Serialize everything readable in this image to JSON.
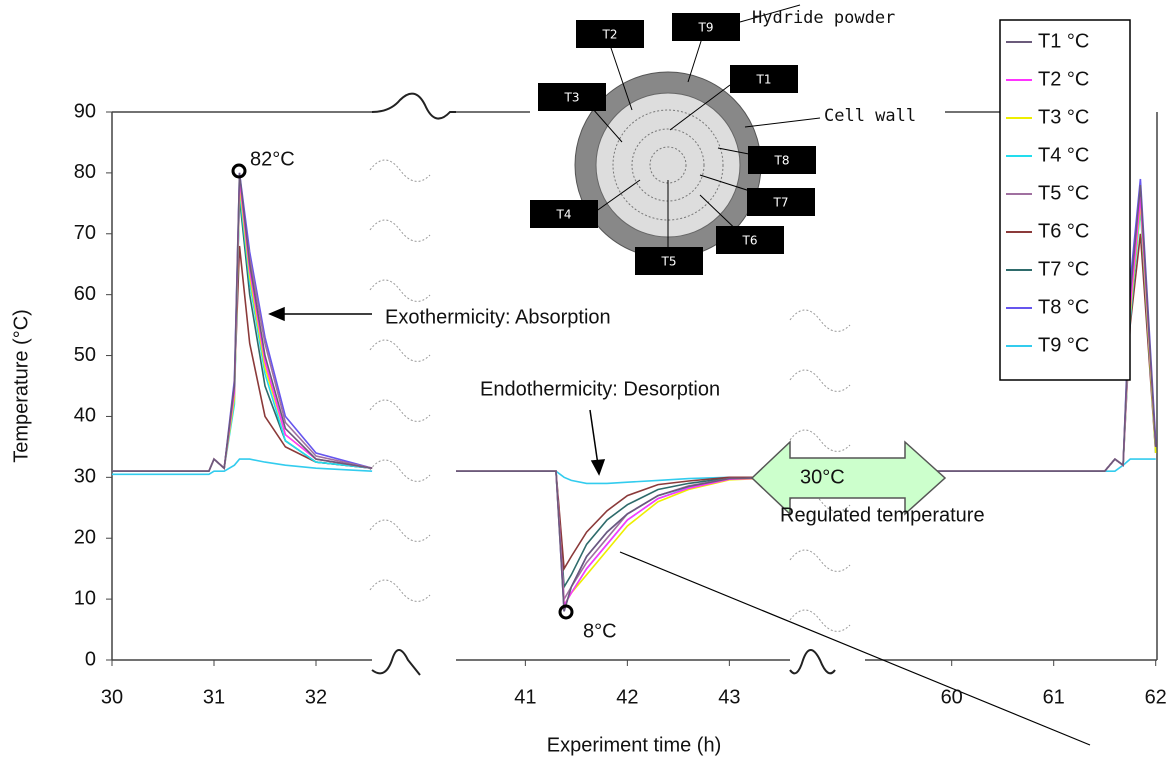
{
  "chart_data": {
    "type": "line",
    "y_label": "Temperature (°C)",
    "x_label": "Experiment time (h)",
    "ylim": [
      0,
      90
    ],
    "yticks": [
      0,
      10,
      20,
      30,
      40,
      50,
      60,
      70,
      80,
      90
    ],
    "xlim": [
      [
        30,
        32.55
      ],
      [
        40.32,
        43.6
      ],
      [
        59.15,
        62
      ]
    ],
    "xticks": [
      [
        30,
        31,
        32
      ],
      [
        41,
        42,
        43
      ],
      [
        60,
        61,
        62
      ]
    ],
    "x": [
      30,
      30.95,
      31.0,
      31.1,
      31.2,
      31.25,
      31.35,
      31.5,
      31.7,
      32.0,
      32.55,
      null,
      40.32,
      41.3,
      41.38,
      41.45,
      41.6,
      41.8,
      42.0,
      42.3,
      42.6,
      43.0,
      43.6,
      null,
      59.15,
      61.5,
      61.6,
      61.68,
      61.75,
      61.85,
      62.0
    ],
    "series": [
      {
        "name": "T9 °C",
        "color": "#33ccee",
        "values": [
          30.5,
          30.5,
          31,
          31,
          32,
          33,
          33,
          32.5,
          32,
          31.5,
          31,
          null,
          31,
          31,
          30,
          29.5,
          29,
          29,
          29.2,
          29.5,
          29.8,
          30,
          30,
          null,
          31,
          31,
          31,
          32,
          33,
          33,
          33
        ]
      },
      {
        "name": "T8 °C",
        "color": "#6655ee",
        "values": [
          31,
          31,
          33,
          31.5,
          46,
          80,
          67,
          53,
          40,
          34,
          31.5,
          null,
          31,
          31,
          8,
          12,
          17,
          21,
          24,
          27,
          28.5,
          29.8,
          30,
          null,
          31,
          31,
          33,
          32,
          62,
          79,
          36
        ]
      },
      {
        "name": "T7 °C",
        "color": "#2e6b6b",
        "values": [
          31,
          31,
          33,
          31.5,
          44,
          76,
          60,
          45,
          36,
          32.5,
          31.5,
          null,
          31,
          31,
          12,
          14,
          19,
          23,
          25.5,
          28,
          29,
          29.9,
          30,
          null,
          31,
          31,
          33,
          32,
          58,
          75,
          35
        ]
      },
      {
        "name": "T6 °C",
        "color": "#8b3a3a",
        "values": [
          31,
          31,
          33,
          31.5,
          45,
          68,
          52,
          40,
          35,
          32.5,
          31.5,
          null,
          31,
          31,
          15,
          17,
          21,
          24.5,
          27,
          28.8,
          29.4,
          30,
          30,
          null,
          31,
          31,
          33,
          32,
          55,
          70,
          34
        ]
      },
      {
        "name": "T5 °C",
        "color": "#a070a0",
        "values": [
          31,
          31,
          33,
          31.5,
          44,
          78,
          66,
          52,
          39,
          33.5,
          31.5,
          null,
          31,
          31,
          10,
          12,
          16,
          20,
          24,
          27,
          28.6,
          29.8,
          30,
          null,
          31,
          31,
          33,
          32,
          59,
          77,
          35
        ]
      },
      {
        "name": "T4 °C",
        "color": "#22ddee",
        "values": [
          31,
          31,
          33,
          31.5,
          42,
          77,
          62,
          47,
          36,
          32.5,
          31.5,
          null,
          31,
          31,
          9,
          11,
          15,
          19,
          23,
          26.5,
          28.3,
          29.7,
          30,
          null,
          31,
          31,
          33,
          32,
          56,
          74,
          34
        ]
      },
      {
        "name": "T3 °C",
        "color": "#eeee00",
        "values": [
          31,
          31,
          33,
          31.5,
          43,
          78,
          63,
          48,
          37,
          33,
          31.5,
          null,
          31,
          31,
          9,
          11,
          14,
          18,
          22,
          26,
          28,
          29.6,
          30,
          null,
          31,
          31,
          33,
          32,
          57,
          75,
          34
        ]
      },
      {
        "name": "T2 °C",
        "color": "#ff33ff",
        "values": [
          31,
          31,
          33,
          31.5,
          44,
          79,
          64,
          49,
          37,
          33,
          31.5,
          null,
          31,
          31,
          9,
          11,
          15,
          19,
          23,
          26.5,
          28.2,
          29.7,
          30,
          null,
          31,
          31,
          33,
          32,
          58,
          76,
          35
        ]
      },
      {
        "name": "T1 °C",
        "color": "#6b5b7b",
        "values": [
          31,
          31,
          33,
          31.5,
          45,
          80,
          65,
          50,
          38,
          33,
          31.5,
          null,
          31,
          31,
          8,
          12,
          17,
          21,
          24,
          27,
          28.5,
          29.8,
          30,
          null,
          31,
          31,
          33,
          32,
          60,
          78,
          35
        ]
      }
    ],
    "annotations": [
      "82°C",
      "Exothermicity: Absorption",
      "Endothermicity: Desorption",
      "30°C",
      "Regulated temperature",
      "8°C"
    ],
    "inset": {
      "labels": [
        "T1",
        "T2",
        "T3",
        "T4",
        "T5",
        "T6",
        "T7",
        "T8",
        "T9"
      ],
      "hydride": "Hydride powder",
      "cell_wall": "Cell wall"
    }
  }
}
